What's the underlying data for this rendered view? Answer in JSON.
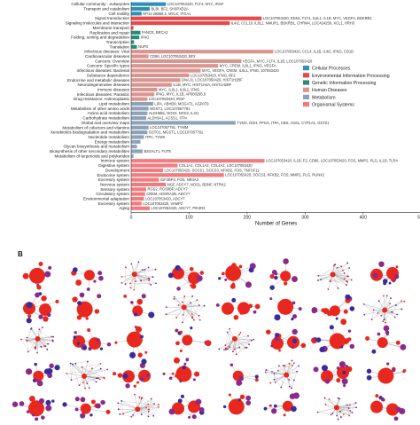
{
  "panel_b_label": "B",
  "colors": {
    "Cellular Processes": "#2f8fb5",
    "Environmental Information Processing": "#e8484a",
    "Genetic Information Processing": "#2a8a78",
    "Human Diseases": "#d9958f",
    "Metabolism": "#8ea3b8",
    "Organismal Systems": "#f07c80"
  },
  "legend": [
    "Cellular Processes",
    "Environmental Information Processing",
    "Genetic Information Processing",
    "Human Diseases",
    "Metabolism",
    "Organismal Systems"
  ],
  "network_colors": {
    "high": "#e8281e",
    "mid": "#8a2a8a",
    "low": "#3b2c9a"
  },
  "chart_data": {
    "type": "bar",
    "orientation": "horizontal",
    "xlabel": "Number of Genes",
    "xlim": [
      0,
      550
    ],
    "xticks": [
      0,
      100,
      200,
      300,
      400,
      500
    ],
    "rows": [
      {
        "label": "Cellular community - eukaryotes",
        "value": 60,
        "group": "Cellular Processes",
        "genes": "LOC107053420, FLT4, MYC, IRGF"
      },
      {
        "label": "Transport and catabolism",
        "value": 32,
        "group": "Cellular Processes",
        "genes": "BLBI, BF2, SH3PXD2A"
      },
      {
        "label": "Cell motility",
        "value": 18,
        "group": "Cellular Processes",
        "genes": "RP11-290B9.2, MYLK, ITGA1"
      },
      {
        "label": "Signal transduction",
        "value": 225,
        "group": "Environmental Information Processing",
        "genes": "LOC107053420, EDN1, FLT4, IL6L1, IL1B, MYC, VEGFA, BDKRB1"
      },
      {
        "label": "Signaling molecules and interaction",
        "value": 170,
        "group": "Environmental Information Processing",
        "genes": "IL4I2, CCL19, IL8L1, NMUR1, BDKRB1, CHRM4, LOC424259, XCL1, HRH3"
      },
      {
        "label": "Membrane transport",
        "value": 4,
        "group": "Environmental Information Processing",
        "genes": ""
      },
      {
        "label": "Replication and repair",
        "value": 16,
        "group": "Genetic Information Processing",
        "genes": "FANCE, BRCA2"
      },
      {
        "label": "Folding, sorting and degradation",
        "value": 14,
        "group": "Genetic Information Processing",
        "genes": "IFNG"
      },
      {
        "label": "Transcription",
        "value": 5,
        "group": "Genetic Information Processing",
        "genes": ""
      },
      {
        "label": "Translation",
        "value": 10,
        "group": "Genetic Information Processing",
        "genes": "NUP3"
      },
      {
        "label": "Infectious diseases: Viral",
        "value": 245,
        "group": "Human Diseases",
        "genes": "LOC107053420, CCL4, IL1B, IL4I2, IFNG, CD1D"
      },
      {
        "label": "Cardiovascular diseases",
        "value": 30,
        "group": "Human Diseases",
        "genes": "CD86, LOC107053420, BF2"
      },
      {
        "label": "Cancers: Overview",
        "value": 190,
        "group": "Human Diseases",
        "genes": "VEGFA, MYC, FLT4, IL1B, LOC107053420"
      },
      {
        "label": "Cancers: Specific types",
        "value": 150,
        "group": "Human Diseases",
        "genes": "MYC, CREM, IL6L1, IFNG, VEGFA"
      },
      {
        "label": "Infectious diseases: Bacterial",
        "value": 120,
        "group": "Human Diseases",
        "genes": "MYC, VEGFA, CREM, IL6L1, IFNG, 107053420"
      },
      {
        "label": "Substance dependence",
        "value": 100,
        "group": "Human Diseases",
        "genes": "LOC107053420, IFNG, BF2"
      },
      {
        "label": "Endocrine and metabolic diseases",
        "value": 85,
        "group": "Human Diseases",
        "genes": "DNAJ1, LOC107053420, HIST1H2BF"
      },
      {
        "label": "Neurodegenerative diseases",
        "value": 70,
        "group": "Human Diseases",
        "genes": "IL1B, MYC, HIST1H4A, HIST1H2BF"
      },
      {
        "label": "Immune diseases",
        "value": 45,
        "group": "Human Diseases",
        "genes": "MYC, IL6L1, IL8L1, IFNG"
      },
      {
        "label": "Infectious diseases: Parasitic",
        "value": 40,
        "group": "Human Diseases",
        "genes": "IFNG, MYC, IL1B, AP000295.9"
      },
      {
        "label": "Drug resistance: Antineoplastic",
        "value": 28,
        "group": "Human Diseases",
        "genes": "LOC107053420, IRGF"
      },
      {
        "label": "Lipid metabolism",
        "value": 38,
        "group": "Metabolism",
        "genes": "LIPA, ABHD6, MOGAT1, AGPAT9"
      },
      {
        "label": "Metabolism of other amino acids",
        "value": 30,
        "group": "Metabolism",
        "genes": "MGST1, LOC107057791"
      },
      {
        "label": "Amino acid metabolism",
        "value": 28,
        "group": "Metabolism",
        "genes": "ALDH6B1, NOS3, NOS2, IL4I1"
      },
      {
        "label": "Carbohydrate metabolism",
        "value": 26,
        "group": "Metabolism",
        "genes": "ALDH9A1, ACSS1, ITPA"
      },
      {
        "label": "Global and overview maps",
        "value": 180,
        "group": "Metabolism",
        "genes": "TYMS, GGH, FPGS, ITPA, CBS, ASS1, CYP1A1, GSTZ1"
      },
      {
        "label": "Metabolism of cofactors and vitamins",
        "value": 30,
        "group": "Metabolism",
        "genes": "LOC107057791, TYMM"
      },
      {
        "label": "Xenobiotics biodegradation and metabolism",
        "value": 28,
        "group": "Metabolism",
        "genes": "GSTO1, MGST1, LOC107057791"
      },
      {
        "label": "Nucleotide metabolism",
        "value": 22,
        "group": "Metabolism",
        "genes": "ITPA, TYMS"
      },
      {
        "label": "Energy metabolism",
        "value": 16,
        "group": "Metabolism",
        "genes": ""
      },
      {
        "label": "Glycan biosynthesis and metabolism",
        "value": 10,
        "group": "Metabolism",
        "genes": ""
      },
      {
        "label": "Biosynthesis of other secondary metabolites",
        "value": 20,
        "group": "Metabolism",
        "genes": "B3GALT1, FUT5"
      },
      {
        "label": "Metabolism of terpenoids and polyketides",
        "value": 4,
        "group": "Metabolism",
        "genes": ""
      },
      {
        "label": "Immune system",
        "value": 230,
        "group": "Organismal Systems",
        "genes": "LOC107053420, IL1B, F2, CD86, LOC107053420, FOS, MMP2, PLG, IL1B, TLR4"
      },
      {
        "label": "Digestive system",
        "value": 80,
        "group": "Organismal Systems",
        "genes": "COL1A1, COL1A2, COL4A2, LOC107053420"
      },
      {
        "label": "Development",
        "value": 55,
        "group": "Organismal Systems",
        "genes": "LOC107053420, SOCS1, SOCS3, NFKB2, FOS, TNFSF11"
      },
      {
        "label": "Endocrine system",
        "value": 160,
        "group": "Organismal Systems",
        "genes": "LOC107053420, SOCS3, NFKB2, FOS, MMP2, PLG, RUNX2"
      },
      {
        "label": "Excretory system",
        "value": 48,
        "group": "Organismal Systems",
        "genes": "IGF2BP3, FOS, NR4A3"
      },
      {
        "label": "Nervous system",
        "value": 60,
        "group": "Organismal Systems",
        "genes": "NGF, ADCY7, NOS1, BDNF, NTRK2"
      },
      {
        "label": "Sensory system",
        "value": 26,
        "group": "Organismal Systems",
        "genes": "RGS2, RGS9BP, ADCY7"
      },
      {
        "label": "Circulatory system",
        "value": 24,
        "group": "Organismal Systems",
        "genes": "CREM, ADORA2B, ADCY7"
      },
      {
        "label": "Environmental adaptation",
        "value": 22,
        "group": "Organismal Systems",
        "genes": "LOC107053420, ADCY7"
      },
      {
        "label": "Excretory system",
        "value": 18,
        "group": "Organismal Systems",
        "genes": "LOC107053420, VAMP2"
      },
      {
        "label": "Aging",
        "value": 32,
        "group": "Organismal Systems",
        "genes": "LOC107053420, ADCY7, PIK3R3"
      }
    ]
  }
}
